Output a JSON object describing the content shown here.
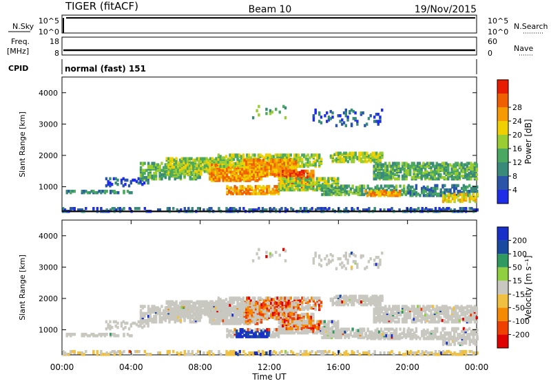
{
  "header": {
    "station": "TIGER (fitACF)",
    "beam": "Beam 10",
    "date": "19/Nov/2015"
  },
  "nsky_panel": {
    "label": "N.Sky",
    "left_ticks": [
      "10^5",
      "10^0"
    ],
    "right_ticks": [
      "10^5",
      "10^0"
    ],
    "right_label": "N.Search"
  },
  "freq_panel": {
    "label_line1": "Freq.",
    "label_line2": "[MHz]",
    "left_ticks": [
      "18",
      "8"
    ],
    "right_ticks": [
      "60",
      "0"
    ],
    "right_label": "Nave"
  },
  "cpid_panel": {
    "label": "CPID",
    "text": "normal (fast) 151"
  },
  "xaxis": {
    "title": "Time UT",
    "ticks": [
      "00:00",
      "04:00",
      "08:00",
      "12:00",
      "16:00",
      "20:00",
      "00:00"
    ]
  },
  "colors": {
    "power_scale": [
      "#1f2ee6",
      "#2a55a8",
      "#3a8a7a",
      "#4aa860",
      "#9acd32",
      "#f0d000",
      "#f59a00",
      "#f06000",
      "#e81c00"
    ],
    "velocity_scale": [
      "#e00000",
      "#f04000",
      "#f58a00",
      "#f0c040",
      "#c8c8c0",
      "#90d040",
      "#2e9a60",
      "#1a4aa0",
      "#1830c8"
    ]
  },
  "chart_data": [
    {
      "type": "heatmap",
      "name": "power",
      "ylabel": "Slant Range [km]",
      "yticks": [
        "1000",
        "2000",
        "3000",
        "4000"
      ],
      "ylim": [
        200,
        4500
      ],
      "xlim": [
        "00:00",
        "24:00"
      ],
      "colorbar": {
        "label": "Power [dB]",
        "ticks": [
          "4",
          "8",
          "12",
          "16",
          "20",
          "24",
          "28"
        ],
        "range": [
          0,
          32
        ]
      }
    },
    {
      "type": "heatmap",
      "name": "velocity",
      "ylabel": "Slant Range [km]",
      "yticks": [
        "1000",
        "2000",
        "3000",
        "4000"
      ],
      "ylim": [
        200,
        4500
      ],
      "xlim": [
        "00:00",
        "24:00"
      ],
      "colorbar": {
        "label": "Velocity [m s⁻¹]",
        "ticks": [
          "200",
          "100",
          "50",
          "15",
          "-15",
          "-50",
          "-100",
          "-200"
        ],
        "range": [
          -250,
          250
        ]
      }
    }
  ]
}
